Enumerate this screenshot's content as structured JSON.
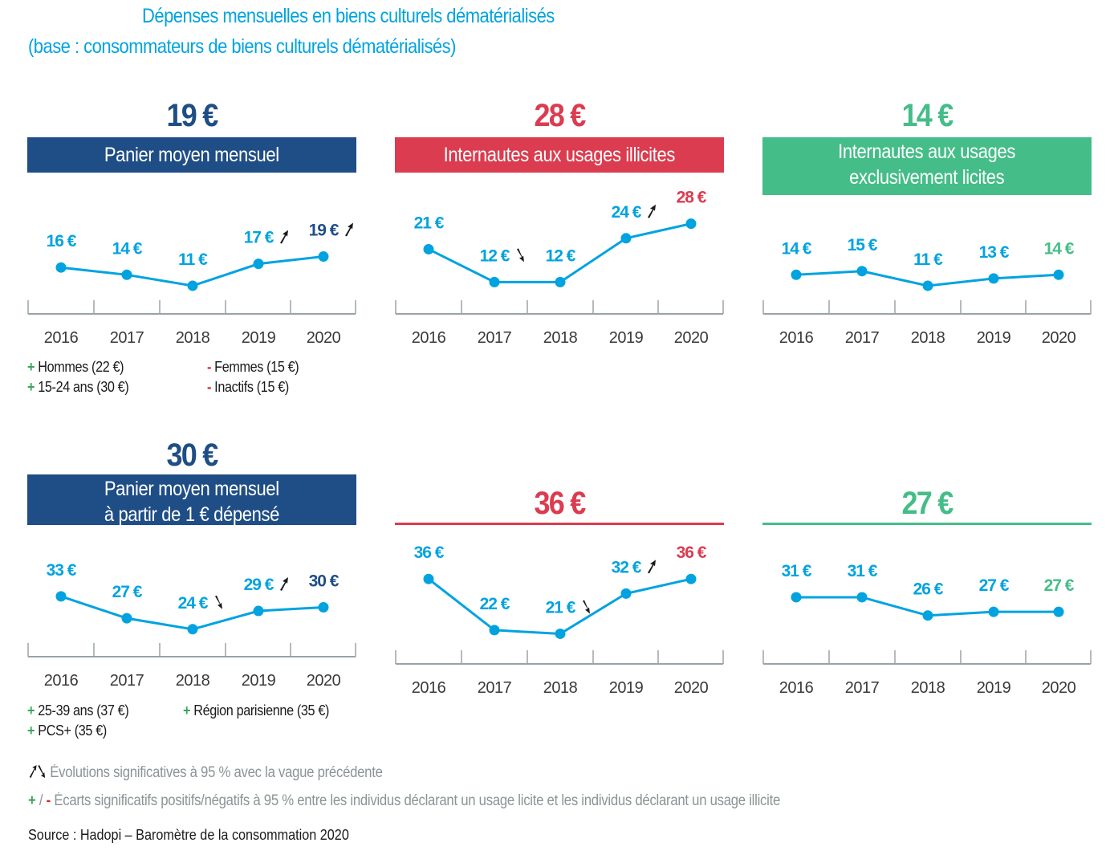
{
  "title": "Dépenses mensuelles en biens culturels dématérialisés",
  "subtitle": "(base : consommateurs de biens culturels dématérialisés)",
  "colors": {
    "line": "#00a3e0",
    "navy": "#1f4e86",
    "red": "#db3c4f",
    "green": "#45bd88",
    "axis": "#9aa3a7",
    "arrow": "#1a1a1a",
    "plus": "#3aa55a",
    "minus": "#e0202a"
  },
  "chart_data": [
    {
      "type": "line",
      "id": "panier-moyen",
      "headline": "19 €",
      "title": "Panier moyen mensuel",
      "theme": "navy",
      "x": [
        "2016",
        "2017",
        "2018",
        "2019",
        "2020"
      ],
      "values": [
        16,
        14,
        11,
        17,
        19
      ],
      "labels": [
        "16 €",
        "14 €",
        "11 €",
        "17 €",
        "19 €"
      ],
      "trend": [
        null,
        null,
        null,
        "up",
        "up"
      ],
      "unit": "€",
      "ylim": [
        0,
        40
      ],
      "notes": [
        {
          "sign": "+",
          "text": "Hommes (22 €)"
        },
        {
          "sign": "-",
          "text": "Femmes (15 €)"
        },
        {
          "sign": "+",
          "text": "15-24 ans (30 €)"
        },
        {
          "sign": "-",
          "text": "Inactifs (15 €)"
        }
      ]
    },
    {
      "type": "line",
      "id": "illicites",
      "headline": "28 €",
      "title": "Internautes aux usages illicites",
      "theme": "red",
      "x": [
        "2016",
        "2017",
        "2018",
        "2019",
        "2020"
      ],
      "values": [
        21,
        12,
        12,
        24,
        28
      ],
      "labels": [
        "21 €",
        "12 €",
        "12 €",
        "24 €",
        "28 €"
      ],
      "trend": [
        null,
        "down",
        null,
        "up",
        null
      ],
      "unit": "€",
      "ylim": [
        0,
        40
      ],
      "notes": []
    },
    {
      "type": "line",
      "id": "licites",
      "headline": "14 €",
      "title": "Internautes aux usages exclusivement licites",
      "title_lines": [
        "Internautes aux usages",
        "exclusivement licites"
      ],
      "theme": "green",
      "x": [
        "2016",
        "2017",
        "2018",
        "2019",
        "2020"
      ],
      "values": [
        14,
        15,
        11,
        13,
        14
      ],
      "labels": [
        "14 €",
        "15 €",
        "11 €",
        "13 €",
        "14 €"
      ],
      "trend": [
        null,
        null,
        null,
        null,
        null
      ],
      "unit": "€",
      "ylim": [
        0,
        40
      ],
      "notes": []
    },
    {
      "type": "line",
      "id": "panier-1euro",
      "headline": "30 €",
      "title": "Panier moyen mensuel à partir de 1 € dépensé",
      "title_lines": [
        "Panier moyen mensuel",
        "à partir de 1 € dépensé"
      ],
      "theme": "navy",
      "x": [
        "2016",
        "2017",
        "2018",
        "2019",
        "2020"
      ],
      "values": [
        33,
        27,
        24,
        29,
        30
      ],
      "labels": [
        "33 €",
        "27 €",
        "24 €",
        "29 €",
        "30 €"
      ],
      "trend": [
        null,
        null,
        "down",
        "up",
        null
      ],
      "unit": "€",
      "ylim": [
        0,
        40
      ],
      "notes": [
        {
          "sign": "+",
          "text": "25-39 ans (37 €)"
        },
        {
          "sign": "+",
          "text": "Région parisienne (35 €)"
        },
        {
          "sign": "+",
          "text": "PCS+ (35 €)"
        }
      ]
    },
    {
      "type": "line",
      "id": "illicites-1euro",
      "headline": "36 €",
      "title": "",
      "theme": "red",
      "x": [
        "2016",
        "2017",
        "2018",
        "2019",
        "2020"
      ],
      "values": [
        36,
        22,
        21,
        32,
        36
      ],
      "labels": [
        "36 €",
        "22 €",
        "21 €",
        "32 €",
        "36 €"
      ],
      "trend": [
        null,
        null,
        "down",
        "up",
        null
      ],
      "unit": "€",
      "ylim": [
        0,
        40
      ],
      "notes": []
    },
    {
      "type": "line",
      "id": "licites-1euro",
      "headline": "27 €",
      "title": "",
      "theme": "green",
      "x": [
        "2016",
        "2017",
        "2018",
        "2019",
        "2020"
      ],
      "values": [
        31,
        31,
        26,
        27,
        27
      ],
      "labels": [
        "31 €",
        "31 €",
        "26 €",
        "27 €",
        "27 €"
      ],
      "trend": [
        null,
        null,
        null,
        null,
        null
      ],
      "unit": "€",
      "ylim": [
        0,
        40
      ],
      "notes": []
    }
  ],
  "legend": {
    "arrows_text": "Évolutions significatives à 95 % avec la vague précédente",
    "signs_sep": "/",
    "signs_text": "Écarts significatifs positifs/négatifs à 95 % entre les individus déclarant un usage licite et les individus déclarant un usage illicite"
  },
  "source": "Source : Hadopi – Baromètre de la consommation 2020"
}
